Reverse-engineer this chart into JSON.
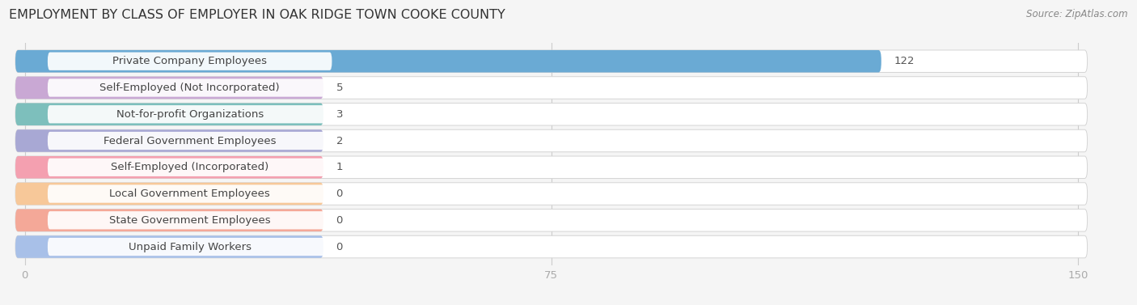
{
  "title": "EMPLOYMENT BY CLASS OF EMPLOYER IN OAK RIDGE TOWN COOKE COUNTY",
  "source": "Source: ZipAtlas.com",
  "categories": [
    "Private Company Employees",
    "Self-Employed (Not Incorporated)",
    "Not-for-profit Organizations",
    "Federal Government Employees",
    "Self-Employed (Incorporated)",
    "Local Government Employees",
    "State Government Employees",
    "Unpaid Family Workers"
  ],
  "values": [
    122,
    5,
    3,
    2,
    1,
    0,
    0,
    0
  ],
  "bar_colors": [
    "#6aaad4",
    "#c9a8d4",
    "#7dbfbc",
    "#a8a8d4",
    "#f4a0b0",
    "#f7c899",
    "#f4a898",
    "#a8c0e8"
  ],
  "xlim_max": 150,
  "xticks": [
    0,
    75,
    150
  ],
  "background_color": "#f5f5f5",
  "title_fontsize": 11.5,
  "label_fontsize": 9.5,
  "value_fontsize": 9.5,
  "source_fontsize": 8.5
}
